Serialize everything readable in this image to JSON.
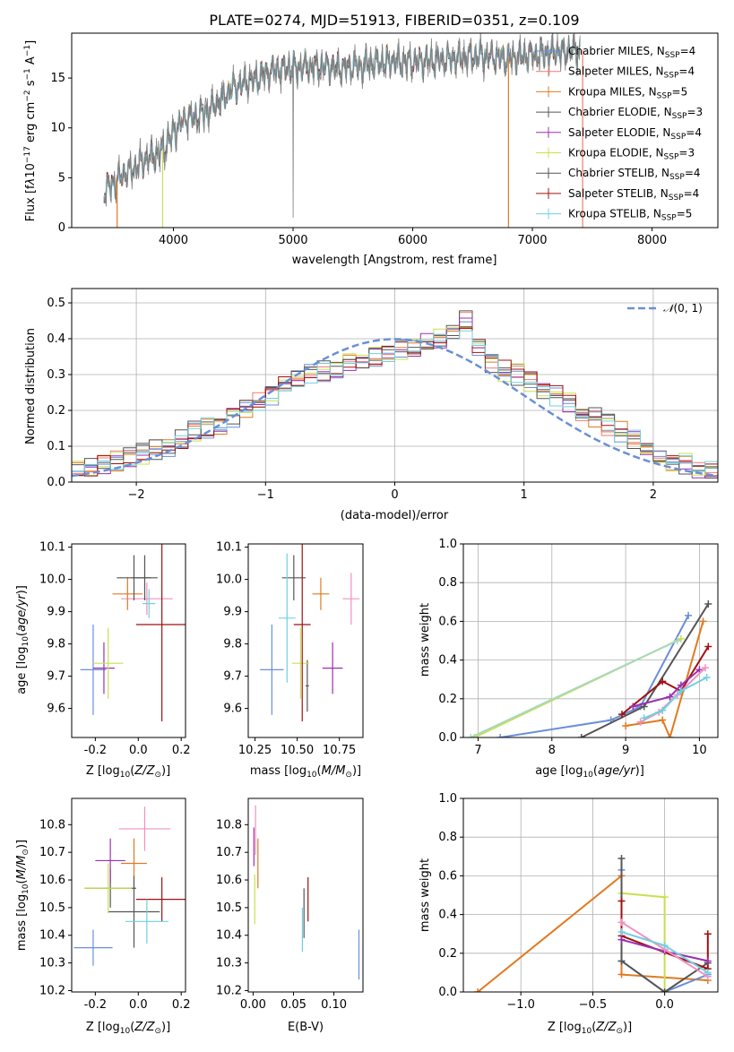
{
  "chart_data": [
    {
      "id": "spectrum",
      "type": "line",
      "title": "PLATE=0274, MJD=51913, FIBERID=0351, z=0.109",
      "xlabel": "wavelength [Angstrom, rest frame]",
      "ylabel": "Flux [f_λ 10^-17 erg cm^-2 s^-1 A^-1]",
      "xlim": [
        3150,
        8550
      ],
      "ylim": [
        0,
        19.5
      ],
      "xticks": [
        4000,
        5000,
        6000,
        7000,
        8000
      ],
      "yticks": [
        0,
        5,
        10,
        15
      ],
      "grid": false,
      "legend_position": "right",
      "continuum": {
        "x": [
          3420,
          3500,
          3600,
          3700,
          3800,
          3900,
          4000,
          4100,
          4200,
          4300,
          4400,
          4500,
          4600,
          4700,
          4800,
          4900,
          5000,
          5200,
          5400,
          5600,
          5800,
          6000,
          6200,
          6400,
          6600,
          6800,
          7000,
          7200,
          7400
        ],
        "y": [
          3.8,
          4.5,
          5.5,
          6.2,
          7.0,
          7.5,
          9.5,
          11.0,
          11.2,
          11.8,
          12.8,
          14.0,
          14.5,
          15.0,
          15.6,
          15.9,
          16.0,
          16.2,
          16.0,
          16.3,
          16.7,
          16.6,
          16.8,
          17.0,
          17.2,
          17.0,
          17.3,
          17.6,
          17.8
        ]
      },
      "series": [
        {
          "name": "Chabrier MILES, N_SSP=4",
          "color": "#6a8fd8"
        },
        {
          "name": "Salpeter MILES, N_SSP=4",
          "color": "#f07b70"
        },
        {
          "name": "Kroupa MILES, N_SSP=5",
          "color": "#e07a20"
        },
        {
          "name": "Chabrier ELODIE, N_SSP=3",
          "color": "#555555"
        },
        {
          "name": "Salpeter ELODIE, N_SSP=4",
          "color": "#9b30b0"
        },
        {
          "name": "Kroupa ELODIE, N_SSP=3",
          "color": "#c8e050"
        },
        {
          "name": "Chabrier STELIB, N_SSP=4",
          "color": "#555555"
        },
        {
          "name": "Salpeter STELIB, N_SSP=4",
          "color": "#a01010"
        },
        {
          "name": "Kroupa STELIB, N_SSP=5",
          "color": "#70d0e0"
        }
      ],
      "data_line": {
        "color": "#808080"
      }
    },
    {
      "id": "residuals",
      "type": "histogram",
      "xlabel": "(data-model)/error",
      "ylabel": "Normed distribution",
      "xlim": [
        -2.5,
        2.5
      ],
      "ylim": [
        0,
        0.54
      ],
      "xticks": [
        -2,
        -1,
        0,
        1,
        2
      ],
      "yticks": [
        0.0,
        0.1,
        0.2,
        0.3,
        0.4,
        0.5
      ],
      "grid": true,
      "legend_position": "top-right",
      "reference_curve": {
        "name": "N(0,1)",
        "mean": 0,
        "sigma": 1,
        "color": "#6a8fd8"
      },
      "bin_width": 0.1,
      "base_profile": [
        0.03,
        0.04,
        0.05,
        0.06,
        0.07,
        0.08,
        0.09,
        0.1,
        0.12,
        0.14,
        0.15,
        0.16,
        0.18,
        0.2,
        0.22,
        0.24,
        0.27,
        0.29,
        0.3,
        0.31,
        0.32,
        0.33,
        0.34,
        0.35,
        0.36,
        0.37,
        0.38,
        0.39,
        0.4,
        0.42,
        0.45,
        0.38,
        0.33,
        0.31,
        0.3,
        0.28,
        0.26,
        0.24,
        0.22,
        0.2,
        0.18,
        0.16,
        0.14,
        0.12,
        0.1,
        0.08,
        0.06,
        0.05,
        0.04,
        0.03
      ]
    },
    {
      "id": "age-vs-Z",
      "type": "errorbar",
      "xlabel": "Z [log10(Z/Z⊙)]",
      "ylabel": "age [log10(age/yr)]",
      "xlim": [
        -0.31,
        0.22
      ],
      "ylim": [
        9.51,
        10.11
      ],
      "xticks": [
        "-0.2",
        "0.0",
        "0.2"
      ],
      "xtickvals": [
        -0.2,
        0.0,
        0.2
      ],
      "yticks": [
        "9.6",
        "9.7",
        "9.8",
        "9.9",
        "10.0",
        "10.1"
      ],
      "ytickvals": [
        9.6,
        9.7,
        9.8,
        9.9,
        10.0,
        10.1
      ],
      "points": [
        {
          "x": -0.21,
          "y": 9.72,
          "xerr": 0.06,
          "yerr": 0.14,
          "color": "#6a8fd8"
        },
        {
          "x": 0.04,
          "y": 9.94,
          "xerr": 0.12,
          "yerr": 0.05,
          "color": "#f090c0"
        },
        {
          "x": -0.05,
          "y": 9.955,
          "xerr": 0.07,
          "yerr": 0.05,
          "color": "#e07a20"
        },
        {
          "x": -0.02,
          "y": 10.005,
          "xerr": 0.08,
          "yerr": 0.07,
          "color": "#555555"
        },
        {
          "x": 0.03,
          "y": 10.005,
          "xerr": 0.06,
          "yerr": 0.07,
          "color": "#555555"
        },
        {
          "x": -0.16,
          "y": 9.725,
          "xerr": 0.05,
          "yerr": 0.08,
          "color": "#9b30b0"
        },
        {
          "x": -0.14,
          "y": 9.74,
          "xerr": 0.07,
          "yerr": 0.11,
          "color": "#c8e050"
        },
        {
          "x": 0.11,
          "y": 9.86,
          "xerr": 0.12,
          "yerr": 0.3,
          "color": "#a01010"
        },
        {
          "x": 0.05,
          "y": 9.925,
          "xerr": 0.03,
          "yerr": 0.045,
          "color": "#70d0e0"
        }
      ]
    },
    {
      "id": "age-vs-mass",
      "type": "errorbar",
      "xlabel": "mass [log10(M/M⊙)]",
      "ylabel": "",
      "xlim": [
        10.21,
        10.89
      ],
      "ylim": [
        9.51,
        10.11
      ],
      "xticks": [
        "10.25",
        "10.50",
        "10.75"
      ],
      "xtickvals": [
        10.25,
        10.5,
        10.75
      ],
      "yticks": [
        "9.6",
        "9.7",
        "9.8",
        "9.9",
        "10.0",
        "10.1"
      ],
      "ytickvals": [
        9.6,
        9.7,
        9.8,
        9.9,
        10.0,
        10.1
      ],
      "points": [
        {
          "x": 10.35,
          "y": 9.72,
          "xerr": 0.07,
          "yerr": 0.14,
          "color": "#6a8fd8"
        },
        {
          "x": 10.82,
          "y": 9.94,
          "xerr": 0.05,
          "yerr": 0.08,
          "color": "#f090c0"
        },
        {
          "x": 10.64,
          "y": 9.955,
          "xerr": 0.05,
          "yerr": 0.05,
          "color": "#e07a20"
        },
        {
          "x": 10.48,
          "y": 10.005,
          "xerr": 0.07,
          "yerr": 0.07,
          "color": "#555555"
        },
        {
          "x": 10.56,
          "y": 9.67,
          "xerr": 0.01,
          "yerr": 0.08,
          "color": "#555555"
        },
        {
          "x": 10.71,
          "y": 9.725,
          "xerr": 0.06,
          "yerr": 0.08,
          "color": "#9b30b0"
        },
        {
          "x": 10.52,
          "y": 9.74,
          "xerr": 0.05,
          "yerr": 0.11,
          "color": "#c8e050"
        },
        {
          "x": 10.53,
          "y": 9.86,
          "xerr": 0.05,
          "yerr": 0.3,
          "color": "#a01010"
        },
        {
          "x": 10.44,
          "y": 9.88,
          "xerr": 0.05,
          "yerr": 0.2,
          "color": "#70d0e0"
        }
      ]
    },
    {
      "id": "mass-weight-vs-age",
      "type": "line",
      "xlabel": "age [log10(age/yr)]",
      "ylabel": "mass weight",
      "xlim": [
        6.8,
        10.25
      ],
      "ylim": [
        0,
        1
      ],
      "xticks": [
        "7",
        "8",
        "9",
        "10"
      ],
      "xtickvals": [
        7,
        8,
        9,
        10
      ],
      "yticks": [
        "0.0",
        "0.2",
        "0.4",
        "0.6",
        "0.8",
        "1.0"
      ],
      "ytickvals": [
        0,
        0.2,
        0.4,
        0.6,
        0.8,
        1.0
      ],
      "grid": true,
      "series": [
        {
          "color": "#6a8fd8",
          "x": [
            7.3,
            8.8,
            9.2,
            9.85
          ],
          "y": [
            0.0,
            0.09,
            0.16,
            0.63
          ]
        },
        {
          "color": "#c8e050",
          "x": [
            6.95,
            9.75
          ],
          "y": [
            0.0,
            0.51
          ]
        },
        {
          "color": "#a6d8c0",
          "x": [
            6.9,
            9.7
          ],
          "y": [
            0.0,
            0.5
          ]
        },
        {
          "color": "#e07a20",
          "x": [
            9.0,
            9.5,
            9.6,
            10.05
          ],
          "y": [
            0.06,
            0.09,
            0.0,
            0.6
          ]
        },
        {
          "color": "#555555",
          "x": [
            8.4,
            9.25,
            10.12
          ],
          "y": [
            0.0,
            0.16,
            0.69
          ]
        },
        {
          "color": "#a01010",
          "x": [
            8.95,
            9.5,
            9.75,
            10.12
          ],
          "y": [
            0.12,
            0.29,
            0.24,
            0.47
          ]
        },
        {
          "color": "#9b30b0",
          "x": [
            9.1,
            9.6,
            9.75,
            10.0
          ],
          "y": [
            0.16,
            0.21,
            0.27,
            0.35
          ]
        },
        {
          "color": "#f090c0",
          "x": [
            9.2,
            9.45,
            9.7,
            10.08
          ],
          "y": [
            0.08,
            0.13,
            0.22,
            0.36
          ]
        },
        {
          "color": "#70d0e0",
          "x": [
            9.25,
            9.5,
            9.75,
            10.1
          ],
          "y": [
            0.1,
            0.14,
            0.24,
            0.31
          ]
        }
      ]
    },
    {
      "id": "mass-vs-Z",
      "type": "errorbar",
      "xlabel": "Z [log10(Z/Z⊙)]",
      "ylabel": "mass [log10(M/M⊙)]",
      "xlim": [
        -0.31,
        0.22
      ],
      "ylim": [
        10.195,
        10.895
      ],
      "xticks": [
        "-0.2",
        "0.0",
        "0.2"
      ],
      "xtickvals": [
        -0.2,
        0.0,
        0.2
      ],
      "yticks": [
        "10.2",
        "10.3",
        "10.4",
        "10.5",
        "10.6",
        "10.7",
        "10.8"
      ],
      "ytickvals": [
        10.2,
        10.3,
        10.4,
        10.5,
        10.6,
        10.7,
        10.8
      ],
      "points": [
        {
          "x": -0.21,
          "y": 10.355,
          "xerr": 0.09,
          "yerr": 0.065,
          "color": "#6a8fd8"
        },
        {
          "x": 0.03,
          "y": 10.785,
          "xerr": 0.12,
          "yerr": 0.08,
          "color": "#f090c0"
        },
        {
          "x": -0.02,
          "y": 10.66,
          "xerr": 0.06,
          "yerr": 0.09,
          "color": "#e07a20"
        },
        {
          "x": -0.02,
          "y": 10.485,
          "xerr": 0.12,
          "yerr": 0.13,
          "color": "#555555"
        },
        {
          "x": -0.13,
          "y": 10.57,
          "xerr": 0.12,
          "yerr": 0.07,
          "color": "#555555"
        },
        {
          "x": -0.13,
          "y": 10.67,
          "xerr": 0.07,
          "yerr": 0.08,
          "color": "#9b30b0"
        },
        {
          "x": -0.14,
          "y": 10.57,
          "xerr": 0.11,
          "yerr": 0.09,
          "color": "#c8e050"
        },
        {
          "x": 0.11,
          "y": 10.53,
          "xerr": 0.12,
          "yerr": 0.08,
          "color": "#a01010"
        },
        {
          "x": 0.04,
          "y": 10.45,
          "xerr": 0.1,
          "yerr": 0.08,
          "color": "#70d0e0"
        }
      ]
    },
    {
      "id": "mass-vs-EBV",
      "type": "errorbar",
      "xlabel": "E(B-V)",
      "ylabel": "",
      "xlim": [
        -0.006,
        0.136
      ],
      "ylim": [
        10.195,
        10.895
      ],
      "xticks": [
        "0.00",
        "0.05",
        "0.10"
      ],
      "xtickvals": [
        0,
        0.05,
        0.1
      ],
      "yticks": [
        "10.2",
        "10.3",
        "10.4",
        "10.5",
        "10.6",
        "10.7",
        "10.8"
      ],
      "ytickvals": [
        10.2,
        10.3,
        10.4,
        10.5,
        10.6,
        10.7,
        10.8
      ],
      "points": [
        {
          "x": 0.131,
          "y": 10.33,
          "xerr": 0.0,
          "yerr": 0.09,
          "color": "#6a8fd8"
        },
        {
          "x": 0.003,
          "y": 10.78,
          "xerr": 0.0,
          "yerr": 0.09,
          "color": "#f090c0"
        },
        {
          "x": 0.006,
          "y": 10.66,
          "xerr": 0.0,
          "yerr": 0.09,
          "color": "#e07a20"
        },
        {
          "x": 0.063,
          "y": 10.48,
          "xerr": 0.0,
          "yerr": 0.09,
          "color": "#555555"
        },
        {
          "x": 0.001,
          "y": 10.72,
          "xerr": 0.0,
          "yerr": 0.07,
          "color": "#9b30b0"
        },
        {
          "x": 0.002,
          "y": 10.53,
          "xerr": 0.0,
          "yerr": 0.09,
          "color": "#c8e050"
        },
        {
          "x": 0.068,
          "y": 10.53,
          "xerr": 0.0,
          "yerr": 0.08,
          "color": "#a01010"
        },
        {
          "x": 0.061,
          "y": 10.42,
          "xerr": 0.0,
          "yerr": 0.08,
          "color": "#70d0e0"
        }
      ]
    },
    {
      "id": "mass-weight-vs-Z",
      "type": "line",
      "xlabel": "Z [log10(Z/Z⊙)]",
      "ylabel": "mass weight",
      "xlim": [
        -1.4,
        0.37
      ],
      "ylim": [
        0,
        1
      ],
      "xticks": [
        "−1.0",
        "−0.5",
        "0.0"
      ],
      "xtickvals": [
        -1.0,
        -0.5,
        0.0
      ],
      "yticks": [
        "0.0",
        "0.2",
        "0.4",
        "0.6",
        "0.8",
        "1.0"
      ],
      "ytickvals": [
        0,
        0.2,
        0.4,
        0.6,
        0.8,
        1.0
      ],
      "grid": true,
      "series": [
        {
          "color": "#e07a20",
          "x": [
            -1.3,
            -0.3,
            -0.3,
            0.3
          ],
          "y": [
            0.0,
            0.6,
            0.09,
            0.06
          ]
        },
        {
          "color": "#6a8fd8",
          "x": [
            -0.3,
            -0.3,
            0.0,
            0.3
          ],
          "y": [
            0.63,
            0.16,
            0.0,
            0.09
          ]
        },
        {
          "color": "#c8e050",
          "x": [
            -0.3,
            0.0,
            0.0
          ],
          "y": [
            0.51,
            0.49,
            0.0
          ]
        },
        {
          "color": "#555555",
          "x": [
            -0.3,
            -0.3,
            0.0,
            0.3
          ],
          "y": [
            0.69,
            0.16,
            0.0,
            0.15
          ]
        },
        {
          "color": "#a01010",
          "x": [
            -0.3,
            -0.3,
            0.3,
            0.3
          ],
          "y": [
            0.47,
            0.29,
            0.12,
            0.3
          ]
        },
        {
          "color": "#9b30b0",
          "x": [
            -0.3,
            0.0,
            0.3
          ],
          "y": [
            0.27,
            0.21,
            0.16
          ]
        },
        {
          "color": "#f090c0",
          "x": [
            -0.3,
            0.0,
            0.3
          ],
          "y": [
            0.36,
            0.22,
            0.08
          ]
        },
        {
          "color": "#70d0e0",
          "x": [
            -0.3,
            0.0,
            0.3
          ],
          "y": [
            0.31,
            0.24,
            0.1
          ]
        }
      ]
    }
  ]
}
